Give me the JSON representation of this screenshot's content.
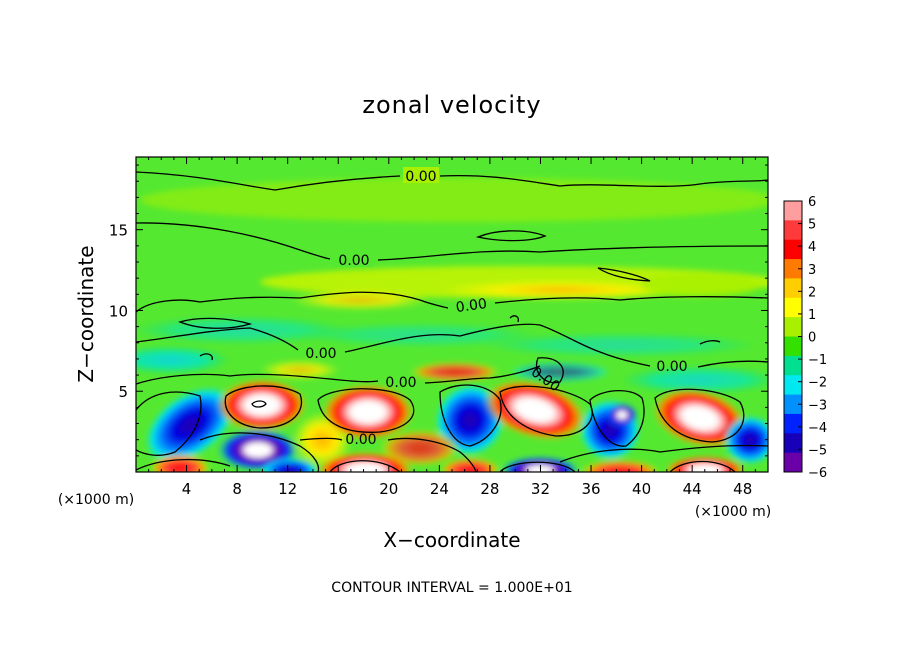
{
  "chart_data": {
    "type": "heatmap",
    "title": "zonal velocity",
    "xlabel": "X−coordinate",
    "ylabel": "Z−coordinate",
    "x_unit_label_left": "(×1000 m)",
    "x_unit_label_right": "(×1000 m)",
    "x_ticks": [
      4,
      8,
      12,
      16,
      20,
      24,
      28,
      32,
      36,
      40,
      44,
      48
    ],
    "y_ticks": [
      5,
      10,
      15
    ],
    "xlim": [
      0,
      50
    ],
    "ylim": [
      0,
      19.5
    ],
    "colorbar": {
      "range": [
        -6,
        6
      ],
      "ticks": [
        "6",
        "5",
        "4",
        "3",
        "2",
        "1",
        "0",
        "−1",
        "−2",
        "−3",
        "−4",
        "−5",
        "−6"
      ],
      "colors": [
        "#ff9e9e",
        "#ff3a3a",
        "#ff0000",
        "#ff7a00",
        "#ffce00",
        "#ffff00",
        "#a8f000",
        "#33e000",
        "#00e090",
        "#00e8f0",
        "#0090ff",
        "#0022ff",
        "#1800b8",
        "#6a00a8"
      ]
    },
    "contour_level_label": "0.00",
    "contour_label_count": 8,
    "footer": "CONTOUR INTERVAL = 1.000E+01"
  }
}
